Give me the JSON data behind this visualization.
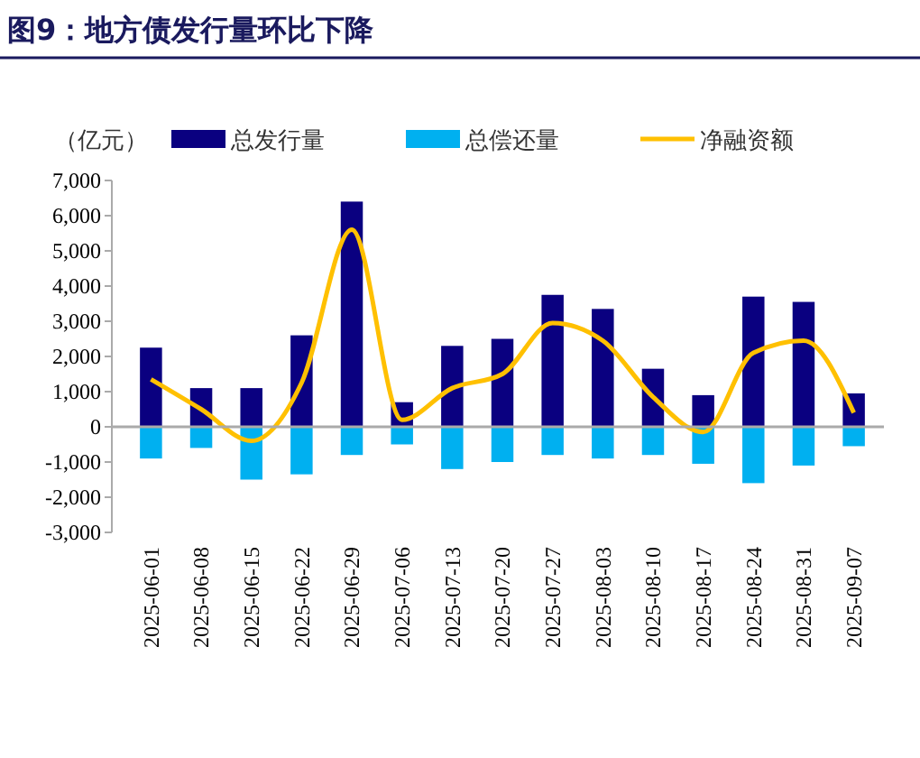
{
  "chart_data": {
    "type": "bar",
    "title": "图9：地方债发行量环比下降",
    "ylabel": "（亿元）",
    "stacked": true,
    "categories": [
      "2025-06-01",
      "2025-06-08",
      "2025-06-15",
      "2025-06-22",
      "2025-06-29",
      "2025-07-06",
      "2025-07-13",
      "2025-07-20",
      "2025-07-27",
      "2025-08-03",
      "2025-08-10",
      "2025-08-17",
      "2025-08-24",
      "2025-08-31",
      "2025-09-07"
    ],
    "series": [
      {
        "name": "总发行量",
        "color": "#0a0080",
        "values": [
          2250,
          1100,
          1100,
          2600,
          6400,
          700,
          2300,
          2500,
          3750,
          3350,
          1650,
          900,
          3700,
          3550,
          950
        ]
      },
      {
        "name": "总偿还量",
        "color": "#00b0f0",
        "values": [
          -900,
          -600,
          -1500,
          -1350,
          -800,
          -500,
          -1200,
          -1000,
          -800,
          -900,
          -800,
          -1050,
          -1600,
          -1100,
          -550
        ]
      },
      {
        "name": "净融资额",
        "type": "line",
        "color": "#ffc000",
        "values": [
          1350,
          500,
          -400,
          1250,
          5600,
          200,
          1100,
          1500,
          2950,
          2450,
          850,
          -150,
          2100,
          2450,
          400
        ]
      }
    ],
    "ylim": [
      -3000,
      7000
    ],
    "yticks": [
      {
        "value": -3000,
        "label": "-3,000"
      },
      {
        "value": -2000,
        "label": "-2,000"
      },
      {
        "value": -1000,
        "label": "-1,000"
      },
      0,
      {
        "value": 1000,
        "label": "1,000"
      },
      {
        "value": 2000,
        "label": "2,000"
      },
      {
        "value": 3000,
        "label": "3,000"
      },
      {
        "value": 4000,
        "label": "4,000"
      },
      {
        "value": 5000,
        "label": "5,000"
      },
      {
        "value": 6000,
        "label": "6,000"
      },
      {
        "value": 7000,
        "label": "7,000"
      }
    ],
    "legend": "top",
    "marker": "none"
  }
}
